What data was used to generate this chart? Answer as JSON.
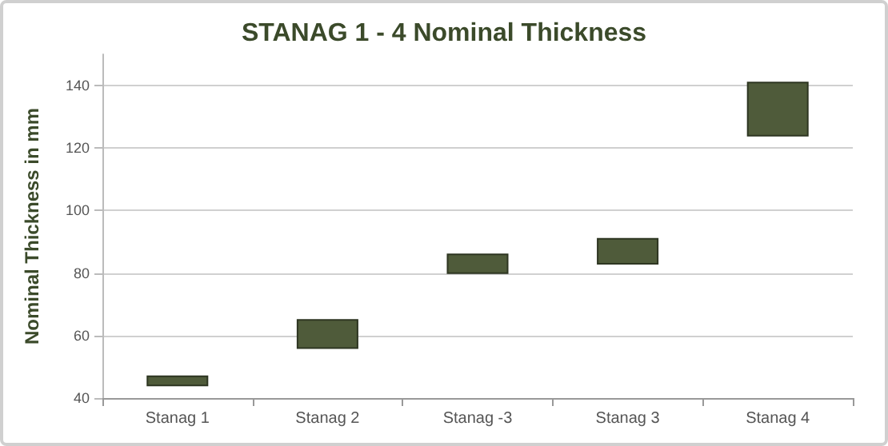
{
  "chart_data": {
    "type": "bar",
    "title": "STANAG 1 - 4 Nominal Thickness",
    "ylabel": "Nominal Thickness in mm",
    "categories": [
      "Stanag 1",
      "Stanag 2",
      "Stanag -3",
      "Stanag 3",
      "Stanag 4"
    ],
    "base": [
      44,
      56,
      80,
      83,
      124
    ],
    "values": [
      3,
      9,
      6,
      8,
      17
    ],
    "color": "#4f5b3a",
    "ylim": [
      40,
      150
    ],
    "yticks": [
      40,
      60,
      80,
      100,
      120,
      140
    ],
    "grid": "y"
  }
}
